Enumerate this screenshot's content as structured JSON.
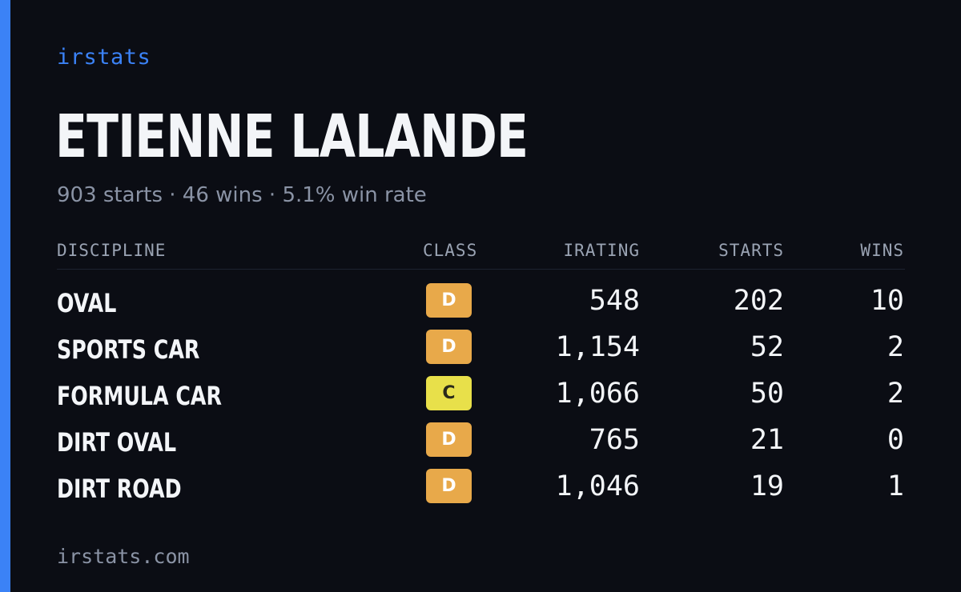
{
  "brand": "irstats",
  "driver": {
    "name": "ETIENNE LALANDE",
    "summary": "903 starts · 46 wins · 5.1% win rate"
  },
  "table": {
    "headers": {
      "discipline": "DISCIPLINE",
      "class": "CLASS",
      "irating": "IRATING",
      "starts": "STARTS",
      "wins": "WINS"
    },
    "rows": [
      {
        "discipline": "OVAL",
        "class": "D",
        "irating": "548",
        "starts": "202",
        "wins": "10"
      },
      {
        "discipline": "SPORTS CAR",
        "class": "D",
        "irating": "1,154",
        "starts": "52",
        "wins": "2"
      },
      {
        "discipline": "FORMULA CAR",
        "class": "C",
        "irating": "1,066",
        "starts": "50",
        "wins": "2"
      },
      {
        "discipline": "DIRT OVAL",
        "class": "D",
        "irating": "765",
        "starts": "21",
        "wins": "0"
      },
      {
        "discipline": "DIRT ROAD",
        "class": "D",
        "irating": "1,046",
        "starts": "19",
        "wins": "1"
      }
    ]
  },
  "class_colors": {
    "D": {
      "bg": "#e8a94a",
      "fg": "#ffffff"
    },
    "C": {
      "bg": "#e8e04a",
      "fg": "#2a2a1a"
    }
  },
  "accent_color": "#3b82f6",
  "footer": "irstats.com"
}
